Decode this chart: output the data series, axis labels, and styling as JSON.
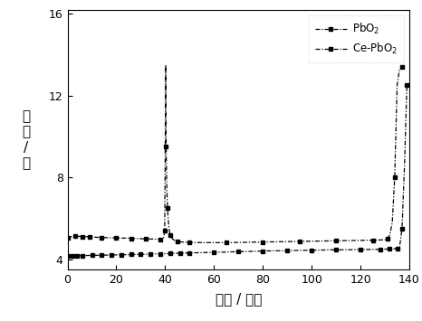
{
  "xlabel": "时间 / 小时",
  "ylabel": "电\n压\n/\n伏",
  "xlim": [
    0,
    140
  ],
  "ylim": [
    3.5,
    16.2
  ],
  "yticks": [
    4,
    8,
    12,
    16
  ],
  "xticks": [
    0,
    20,
    40,
    60,
    80,
    100,
    120,
    140
  ],
  "legend_labels": [
    "PbO$_2$",
    "Ce-PbO$_2$"
  ],
  "line_color": "#000000",
  "background_color": "#ffffff",
  "pbo2_t": [
    0,
    1,
    2,
    3,
    4,
    5,
    6,
    7,
    8,
    9,
    10,
    12,
    14,
    16,
    18,
    20,
    22,
    24,
    26,
    28,
    30,
    32,
    34,
    36,
    38,
    39,
    39.5,
    39.8,
    40.0,
    40.2,
    40.4,
    40.6,
    40.8,
    41.0,
    41.2,
    41.5,
    42.0,
    43.0,
    44.0,
    45.0,
    46.0,
    48.0,
    50,
    55,
    60,
    65,
    70,
    75,
    80,
    85,
    90,
    95,
    100,
    105,
    110,
    115,
    120,
    125,
    128,
    130,
    131,
    132,
    133,
    134,
    135,
    136,
    137,
    138
  ],
  "pbo2_v": [
    5.05,
    5.1,
    5.12,
    5.13,
    5.13,
    5.12,
    5.12,
    5.11,
    5.11,
    5.1,
    5.1,
    5.08,
    5.07,
    5.06,
    5.06,
    5.05,
    5.04,
    5.04,
    5.03,
    5.02,
    5.01,
    5.0,
    5.0,
    4.99,
    4.98,
    5.0,
    5.1,
    5.4,
    9.0,
    13.5,
    9.5,
    7.8,
    7.0,
    6.5,
    6.0,
    5.6,
    5.2,
    5.0,
    4.92,
    4.88,
    4.86,
    4.84,
    4.83,
    4.82,
    4.82,
    4.82,
    4.83,
    4.84,
    4.85,
    4.86,
    4.87,
    4.88,
    4.89,
    4.9,
    4.91,
    4.92,
    4.93,
    4.94,
    4.95,
    4.96,
    5.0,
    5.2,
    5.8,
    8.0,
    12.5,
    13.3,
    13.4,
    13.4
  ],
  "cepbo2_t": [
    0,
    1,
    2,
    3,
    4,
    5,
    6,
    8,
    10,
    12,
    14,
    16,
    18,
    20,
    22,
    24,
    26,
    28,
    30,
    32,
    34,
    36,
    38,
    40,
    42,
    44,
    46,
    48,
    50,
    55,
    60,
    65,
    70,
    75,
    80,
    85,
    90,
    95,
    100,
    105,
    110,
    115,
    120,
    125,
    128,
    130,
    132,
    134,
    135,
    136,
    137,
    138,
    139
  ],
  "cepbo2_v": [
    4.18,
    4.17,
    4.17,
    4.17,
    4.18,
    4.18,
    4.19,
    4.19,
    4.2,
    4.2,
    4.21,
    4.21,
    4.22,
    4.22,
    4.23,
    4.23,
    4.24,
    4.24,
    4.25,
    4.25,
    4.26,
    4.27,
    4.27,
    4.28,
    4.29,
    4.3,
    4.3,
    4.31,
    4.32,
    4.33,
    4.35,
    4.36,
    4.38,
    4.39,
    4.41,
    4.42,
    4.43,
    4.44,
    4.45,
    4.46,
    4.47,
    4.47,
    4.48,
    4.49,
    4.49,
    4.5,
    4.51,
    4.52,
    4.54,
    4.6,
    5.5,
    8.5,
    12.5
  ]
}
